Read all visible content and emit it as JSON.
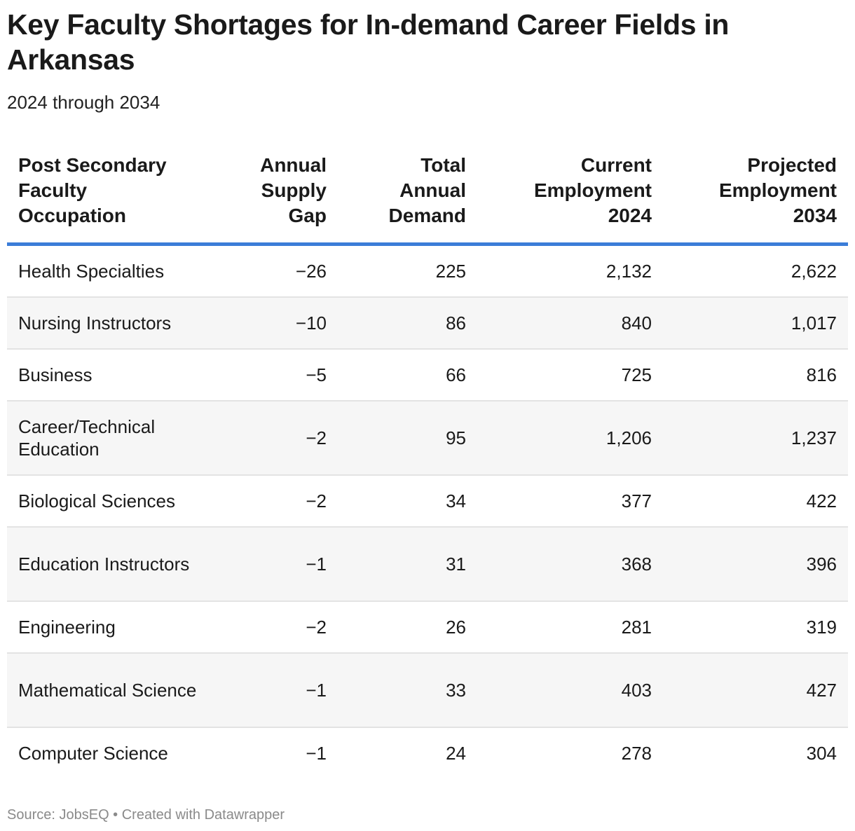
{
  "title": "Key Faculty Shortages for In-demand Career Fields in Arkansas",
  "subtitle": "2024 through 2034",
  "footer": "Source: JobsEQ • Created with Datawrapper",
  "chart_data": {
    "type": "table",
    "columns": [
      "Post Secondary\nFaculty\nOccupation",
      "Annual\nSupply\nGap",
      "Total\nAnnual\nDemand",
      "Current\nEmployment\n2024",
      "Projected\nEmployment\n2034"
    ],
    "rows": [
      [
        "Health Specialties",
        "−26",
        "225",
        "2,132",
        "2,622"
      ],
      [
        "Nursing Instructors",
        "−10",
        "86",
        "840",
        "1,017"
      ],
      [
        "Business",
        "−5",
        "66",
        "725",
        "816"
      ],
      [
        "Career/Technical Education",
        "−2",
        "95",
        "1,206",
        "1,237"
      ],
      [
        "Biological Sciences",
        "−2",
        "34",
        "377",
        "422"
      ],
      [
        "Education Instructors",
        "−1",
        "31",
        "368",
        "396"
      ],
      [
        "Engineering",
        "−2",
        "26",
        "281",
        "319"
      ],
      [
        "Mathematical Science",
        "−1",
        "33",
        "403",
        "427"
      ],
      [
        "Computer Science",
        "−1",
        "24",
        "278",
        "304"
      ]
    ],
    "header_rule_color": "#3b7dd8",
    "stripe_color": "#f6f6f6"
  }
}
